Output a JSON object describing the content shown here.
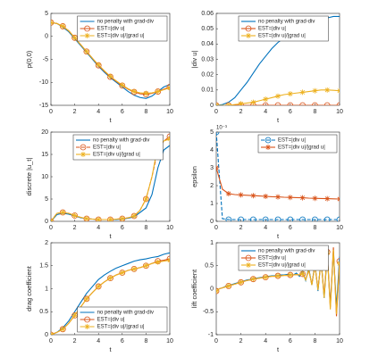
{
  "chart_data": [
    {
      "type": "line",
      "ylabel": "p(0,0)",
      "xlabel": "t",
      "xlim": [
        0,
        10
      ],
      "xticks": [
        0,
        2,
        4,
        6,
        8,
        10
      ],
      "ylim": [
        -15,
        5
      ],
      "yticks": [
        -15,
        -10,
        -5,
        0,
        5
      ],
      "legend": "upper right",
      "x": [
        0,
        0.5,
        1,
        1.5,
        2,
        2.5,
        3,
        3.5,
        4,
        4.5,
        5,
        5.5,
        6,
        6.5,
        7,
        7.5,
        8,
        8.5,
        9,
        9.5,
        10
      ],
      "series": [
        {
          "name": "no penalty with grad-div",
          "color": "#0072bd",
          "values": [
            3,
            2.8,
            2,
            1,
            -0.5,
            -2,
            -3.5,
            -5,
            -6.5,
            -7.8,
            -9,
            -10,
            -11,
            -12,
            -12.8,
            -13.3,
            -13.5,
            -13,
            -12,
            -11,
            -10.5
          ]
        },
        {
          "name": "EST=|div u|",
          "color": "#d95319",
          "marker": "o",
          "values": [
            3,
            2.8,
            2.2,
            1.2,
            -0.3,
            -1.8,
            -3.3,
            -4.8,
            -6.3,
            -7.6,
            -8.8,
            -9.8,
            -10.7,
            -11.5,
            -12.1,
            -12.5,
            -12.6,
            -12.4,
            -12,
            -11.5,
            -11
          ]
        },
        {
          "name": "EST=|div u|/|grad u|",
          "color": "#edb120",
          "marker": "*",
          "values": [
            3,
            2.8,
            2.2,
            1.2,
            -0.3,
            -1.8,
            -3.3,
            -4.8,
            -6.2,
            -7.5,
            -8.7,
            -9.7,
            -10.6,
            -11.4,
            -12,
            -12.3,
            -12.4,
            -12.3,
            -12,
            -11.6,
            -11.2
          ]
        }
      ]
    },
    {
      "type": "line",
      "ylabel": "|div u|",
      "xlabel": "t",
      "xlim": [
        0,
        10
      ],
      "xticks": [
        0,
        2,
        4,
        6,
        8,
        10
      ],
      "ylim": [
        0,
        0.06
      ],
      "yticks": [
        0,
        0.01,
        0.02,
        0.03,
        0.04,
        0.05,
        0.06
      ],
      "legend": "upper left",
      "x": [
        0,
        0.5,
        1,
        1.5,
        2,
        2.5,
        3,
        3.5,
        4,
        4.5,
        5,
        5.5,
        6,
        6.5,
        7,
        7.5,
        8,
        8.5,
        9,
        9.5,
        10
      ],
      "series": [
        {
          "name": "no penalty with grad-div",
          "color": "#0072bd",
          "values": [
            0,
            0.0005,
            0.002,
            0.005,
            0.01,
            0.015,
            0.021,
            0.027,
            0.032,
            0.037,
            0.041,
            0.044,
            0.047,
            0.05,
            0.052,
            0.054,
            0.055,
            0.056,
            0.057,
            0.058,
            0.058
          ]
        },
        {
          "name": "EST=|div u|",
          "color": "#d95319",
          "marker": "o",
          "values": [
            0,
            0,
            0,
            0,
            0,
            0,
            0,
            0,
            0,
            0,
            0,
            0,
            0,
            0,
            0,
            0,
            0,
            0,
            0,
            0,
            0
          ]
        },
        {
          "name": "EST=|div u|/|grad u|",
          "color": "#edb120",
          "marker": "*",
          "values": [
            0,
            0,
            0,
            0.0005,
            0.001,
            0.0015,
            0.002,
            0.003,
            0.004,
            0.005,
            0.006,
            0.007,
            0.0075,
            0.008,
            0.0085,
            0.009,
            0.0095,
            0.01,
            0.01,
            0.0098,
            0.0095
          ]
        }
      ]
    },
    {
      "type": "line",
      "ylabel": "discrete |u_t|",
      "xlabel": "t",
      "xlim": [
        0,
        10
      ],
      "xticks": [
        0,
        2,
        4,
        6,
        8,
        10
      ],
      "ylim": [
        0,
        20
      ],
      "yticks": [
        0,
        5,
        10,
        15,
        20
      ],
      "legend": "upper left",
      "x": [
        0,
        0.5,
        1,
        1.5,
        2,
        2.5,
        3,
        3.5,
        4,
        4.5,
        5,
        5.5,
        6,
        6.5,
        7,
        7.5,
        8,
        8.5,
        9,
        9.5,
        10
      ],
      "series": [
        {
          "name": "no penalty with grad-div",
          "color": "#0072bd",
          "values": [
            0,
            1.5,
            1.8,
            1.6,
            1.2,
            0.8,
            0.6,
            0.5,
            0.4,
            0.4,
            0.4,
            0.4,
            0.5,
            0.7,
            1,
            2,
            3,
            6,
            12,
            16,
            17
          ]
        },
        {
          "name": "EST=|div u|",
          "color": "#d95319",
          "marker": "o",
          "linestyle": "--",
          "values": [
            0,
            1.8,
            2,
            1.8,
            1.3,
            0.9,
            0.6,
            0.5,
            0.4,
            0.4,
            0.4,
            0.5,
            0.6,
            0.8,
            1.2,
            2.5,
            5,
            10,
            16,
            18,
            19
          ]
        },
        {
          "name": "EST=|div u|/|grad u|",
          "color": "#edb120",
          "marker": "*",
          "values": [
            0,
            1.8,
            2,
            1.8,
            1.3,
            0.9,
            0.6,
            0.5,
            0.4,
            0.4,
            0.4,
            0.5,
            0.6,
            0.8,
            1.2,
            2.5,
            5,
            10,
            17,
            18,
            18.5
          ]
        }
      ]
    },
    {
      "type": "line",
      "ylabel": "epsilon",
      "xlabel": "t",
      "exponent_label": "10⁻³",
      "xlim": [
        0,
        10
      ],
      "xticks": [
        0,
        2,
        4,
        6,
        8,
        10
      ],
      "ylim": [
        0,
        5
      ],
      "yticks": [
        0,
        1,
        2,
        3,
        4,
        5
      ],
      "legend": "upper right",
      "x": [
        0,
        0.5,
        1,
        1.5,
        2,
        2.5,
        3,
        3.5,
        4,
        4.5,
        5,
        5.5,
        6,
        6.5,
        7,
        7.5,
        8,
        8.5,
        9,
        9.5,
        10
      ],
      "series": [
        {
          "name": "EST=|div u|",
          "color": "#0072bd",
          "marker": "o",
          "linestyle": "--",
          "values": [
            5,
            0.15,
            0.1,
            0.1,
            0.1,
            0.1,
            0.1,
            0.1,
            0.1,
            0.1,
            0.1,
            0.1,
            0.1,
            0.1,
            0.1,
            0.1,
            0.1,
            0.1,
            0.1,
            0.1,
            0.1
          ]
        },
        {
          "name": "EST=|div u|/|grad u|",
          "color": "#d95319",
          "marker": "*",
          "values": [
            3,
            1.8,
            1.55,
            1.5,
            1.48,
            1.46,
            1.44,
            1.42,
            1.4,
            1.38,
            1.37,
            1.35,
            1.34,
            1.33,
            1.32,
            1.3,
            1.29,
            1.28,
            1.27,
            1.26,
            1.25
          ]
        }
      ]
    },
    {
      "type": "line",
      "ylabel": "drag coefficient",
      "xlabel": "t",
      "xlim": [
        0,
        10
      ],
      "xticks": [
        0,
        2,
        4,
        6,
        8,
        10
      ],
      "ylim": [
        0,
        2
      ],
      "yticks": [
        0,
        0.5,
        1,
        1.5,
        2
      ],
      "legend": "lower right",
      "x": [
        0,
        0.5,
        1,
        1.5,
        2,
        2.5,
        3,
        3.5,
        4,
        4.5,
        5,
        5.5,
        6,
        6.5,
        7,
        7.5,
        8,
        8.5,
        9,
        9.5,
        10
      ],
      "series": [
        {
          "name": "no penalty with grad-div",
          "color": "#0072bd",
          "values": [
            0,
            0.05,
            0.15,
            0.3,
            0.5,
            0.7,
            0.9,
            1.05,
            1.2,
            1.3,
            1.38,
            1.45,
            1.5,
            1.55,
            1.6,
            1.63,
            1.65,
            1.68,
            1.7,
            1.75,
            1.78
          ]
        },
        {
          "name": "EST=|div u|",
          "color": "#d95319",
          "marker": "o",
          "values": [
            0,
            0.05,
            0.12,
            0.25,
            0.42,
            0.6,
            0.78,
            0.92,
            1.05,
            1.15,
            1.23,
            1.3,
            1.35,
            1.4,
            1.43,
            1.46,
            1.5,
            1.55,
            1.6,
            1.62,
            1.65
          ]
        },
        {
          "name": "EST=|div u|/|grad u|",
          "color": "#edb120",
          "marker": "*",
          "values": [
            0,
            0.05,
            0.12,
            0.25,
            0.42,
            0.6,
            0.78,
            0.92,
            1.05,
            1.15,
            1.23,
            1.3,
            1.35,
            1.4,
            1.43,
            1.46,
            1.5,
            1.55,
            1.58,
            1.6,
            1.62
          ]
        }
      ]
    },
    {
      "type": "line",
      "ylabel": "lift coefficient",
      "xlabel": "t",
      "xlim": [
        0,
        10
      ],
      "xticks": [
        0,
        2,
        4,
        6,
        8,
        10
      ],
      "ylim": [
        -1,
        1
      ],
      "yticks": [
        -1,
        -0.5,
        0,
        0.5,
        1
      ],
      "legend": "upper left",
      "x": [
        0,
        0.25,
        0.5,
        0.75,
        1,
        1.25,
        1.5,
        1.75,
        2,
        2.25,
        2.5,
        2.75,
        3,
        3.25,
        3.5,
        3.75,
        4,
        4.25,
        4.5,
        4.75,
        5,
        5.25,
        5.5,
        5.75,
        6,
        6.25,
        6.5,
        6.75,
        7,
        7.25,
        7.5,
        7.75,
        8,
        8.25,
        8.5,
        8.75,
        9,
        9.25,
        9.5,
        9.75,
        10
      ],
      "series": [
        {
          "name": "no penalty with grad-div",
          "color": "#0072bd",
          "values": [
            -0.05,
            0,
            0.02,
            0.05,
            0.07,
            0.09,
            0.11,
            0.13,
            0.15,
            0.17,
            0.19,
            0.2,
            0.22,
            0.23,
            0.24,
            0.25,
            0.26,
            0.27,
            0.28,
            0.28,
            0.29,
            0.3,
            0.3,
            0.31,
            0.31,
            0.3,
            0.34,
            0.27,
            0.38,
            0.18,
            0.45,
            0.08,
            0.55,
            -0.05,
            0.65,
            -0.2,
            0.75,
            -0.35,
            0.8,
            -0.4,
            0.7
          ]
        },
        {
          "name": "EST=|div u|",
          "color": "#d95319",
          "marker": "o",
          "values": [
            -0.05,
            0,
            0.02,
            0.04,
            0.06,
            0.08,
            0.1,
            0.12,
            0.14,
            0.16,
            0.18,
            0.19,
            0.21,
            0.22,
            0.23,
            0.24,
            0.25,
            0.26,
            0.27,
            0.27,
            0.28,
            0.28,
            0.29,
            0.29,
            0.3,
            0.3,
            0.31,
            0.3,
            0.32,
            0.2,
            0.4,
            0.1,
            0.5,
            0,
            0.6,
            -0.15,
            0.8,
            -0.4,
            0.9,
            -0.6,
            0.6
          ]
        },
        {
          "name": "EST=|div u|/|grad u|",
          "color": "#edb120",
          "marker": "*",
          "values": [
            -0.05,
            0,
            0.02,
            0.04,
            0.06,
            0.08,
            0.1,
            0.12,
            0.14,
            0.16,
            0.18,
            0.19,
            0.21,
            0.22,
            0.23,
            0.24,
            0.25,
            0.26,
            0.27,
            0.27,
            0.28,
            0.28,
            0.29,
            0.29,
            0.3,
            0.3,
            0.31,
            0.3,
            0.33,
            0.19,
            0.42,
            0.08,
            0.52,
            -0.03,
            0.62,
            -0.2,
            0.78,
            -0.45,
            0.85,
            -0.55,
            0.55
          ]
        }
      ]
    }
  ]
}
